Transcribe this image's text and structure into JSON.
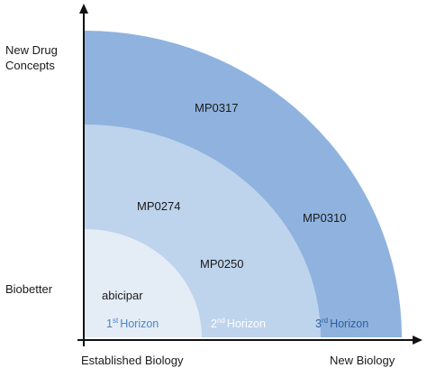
{
  "y_axis": {
    "top_label_line1": "New Drug",
    "top_label_line2": "Concepts",
    "bottom_label": "Biobetter"
  },
  "x_axis": {
    "left_label": "Established Biology",
    "right_label": "New Biology"
  },
  "horizons": [
    {
      "number": "1",
      "suffix": "st",
      "word": "Horizon",
      "fill": "#e4ecf6",
      "text_color": "#4a86c5"
    },
    {
      "number": "2",
      "suffix": "nd",
      "word": "Horizon",
      "fill": "#bed3ec",
      "text_color": "#ffffff"
    },
    {
      "number": "3",
      "suffix": "rd",
      "word": "Horizon",
      "fill": "#8fb3de",
      "text_color": "#2e5f9e"
    }
  ],
  "compounds": {
    "outer": [
      "MP0317",
      "MP0310"
    ],
    "middle": [
      "MP0274",
      "MP0250"
    ],
    "inner": [
      "abicipar"
    ]
  },
  "axis_color": "#111111"
}
